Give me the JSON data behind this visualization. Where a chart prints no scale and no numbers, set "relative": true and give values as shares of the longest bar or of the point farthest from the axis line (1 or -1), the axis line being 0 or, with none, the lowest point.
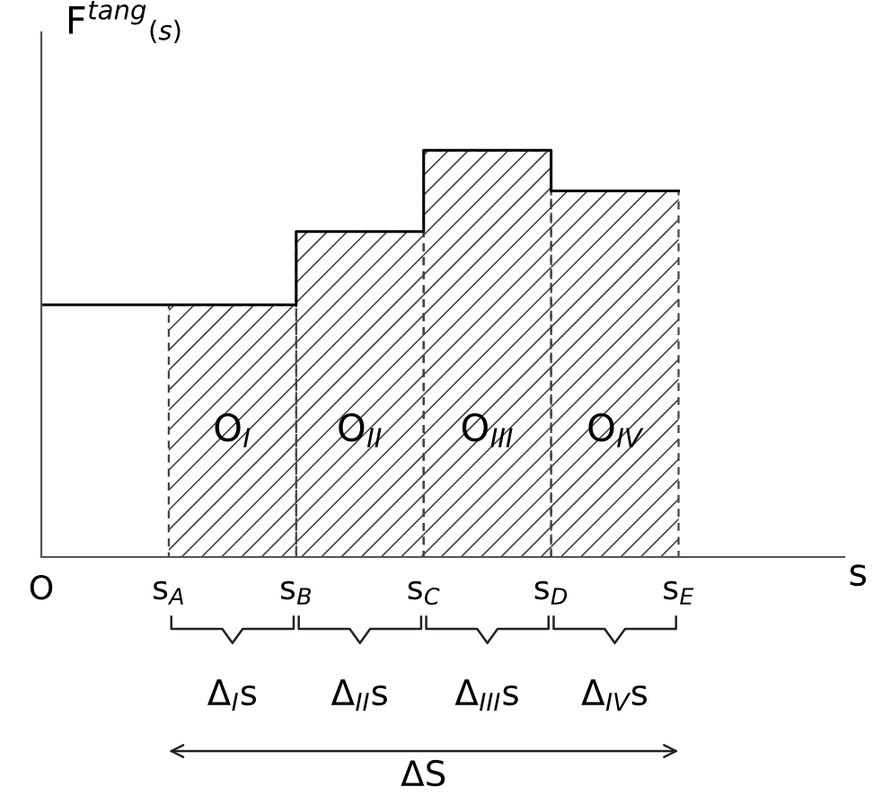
{
  "chart_data": {
    "type": "step",
    "relative": true,
    "ylabel": "F$^{tang}$$_{(s)}$",
    "xlabel": "s",
    "categories": [
      "O",
      null,
      "s$_{A}$",
      null,
      "s$_{B}$",
      null,
      "s$_{C}$",
      null,
      "s$_{D}$",
      null,
      "s$_{E}$"
    ],
    "series": [
      {
        "color": "#000000",
        "values": [
          0.62,
          0.62,
          0.62,
          0.62,
          0.8,
          0.8,
          1,
          1,
          0.9,
          0.9,
          0.9
        ]
      },
      {
        "type": "bar",
        "color": "#444444",
        "values": [
          null,
          null,
          null,
          0.62,
          null,
          0.8,
          null,
          1,
          null,
          0.9,
          null
        ]
      }
    ],
    "annotations": [
      "O$_{I}$",
      "O$_{II}$",
      "O$_{III}$",
      "O$_{IV}$",
      "Δ$_{I}$s",
      "Δ$_{II}$s",
      "Δ$_{III}$s",
      "Δ$_{IV}$s",
      "ΔS"
    ]
  }
}
